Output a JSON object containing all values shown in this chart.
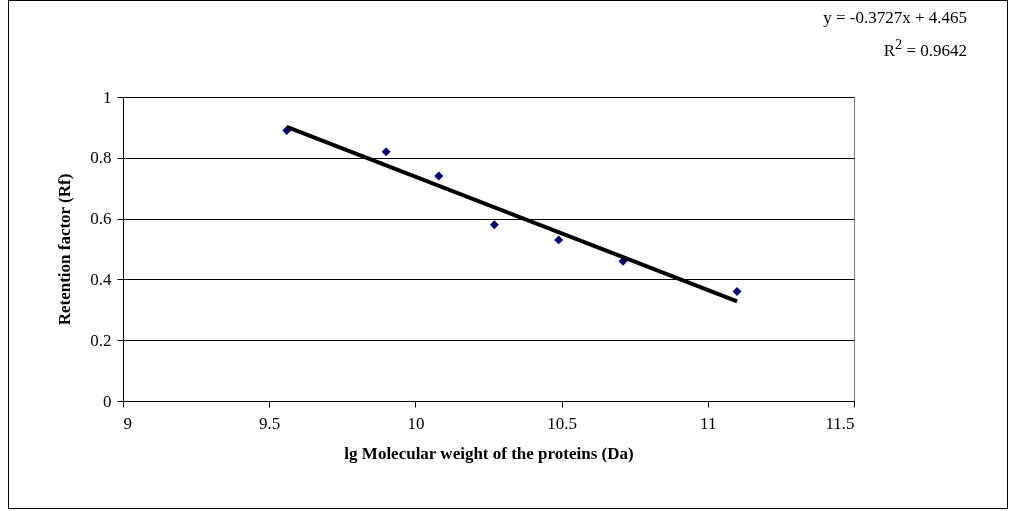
{
  "chart_data": {
    "type": "scatter",
    "xlabel": "lg Molecular weight of the proteins (Da)",
    "ylabel": "Retention factor (Rf)",
    "annotations": [
      "y = -0.3727x + 4.465",
      "R$^{2}$ = 0.9642"
    ],
    "xlim": [
      9,
      11.5
    ],
    "xticks": [
      9,
      9.5,
      10,
      10.5,
      11,
      11.5
    ],
    "ylim": [
      0,
      1
    ],
    "yticks": [
      0,
      0.2,
      0.4,
      0.6,
      0.8,
      1
    ],
    "grid": "y",
    "series": [
      {
        "color": "#000080",
        "marker": "diamond",
        "x": [
          9.56,
          9.9,
          10.08,
          10.27,
          10.49,
          10.71,
          11.1
        ],
        "values": [
          0.89,
          0.82,
          0.74,
          0.58,
          0.53,
          0.46,
          0.36
        ]
      },
      {
        "type": "line",
        "color": "#000000",
        "line_style": "solid",
        "x": [
          9.56,
          11.1
        ],
        "values": [
          0.902,
          0.328
        ]
      }
    ]
  }
}
